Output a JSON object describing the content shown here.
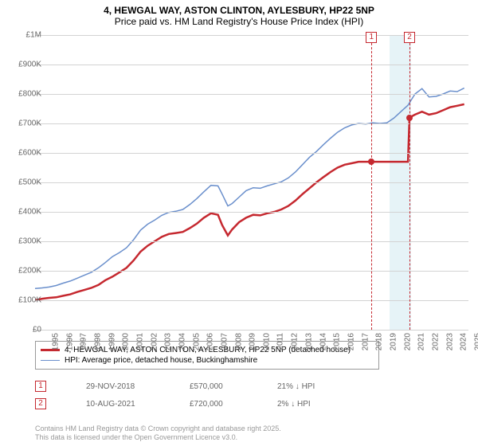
{
  "title": "4, HEWGAL WAY, ASTON CLINTON, AYLESBURY, HP22 5NP",
  "subtitle": "Price paid vs. HM Land Registry's House Price Index (HPI)",
  "chart": {
    "type": "line",
    "xlim": [
      1995,
      2025.8
    ],
    "ylim": [
      0,
      1000000
    ],
    "x_ticks": [
      1995,
      1996,
      1997,
      1998,
      1999,
      2000,
      2001,
      2002,
      2003,
      2004,
      2005,
      2006,
      2007,
      2008,
      2009,
      2010,
      2011,
      2012,
      2013,
      2014,
      2015,
      2016,
      2017,
      2018,
      2019,
      2020,
      2021,
      2022,
      2023,
      2024,
      2025
    ],
    "y_ticks": [
      0,
      100000,
      200000,
      300000,
      400000,
      500000,
      600000,
      700000,
      800000,
      900000,
      1000000
    ],
    "y_tick_labels": [
      "£0",
      "£100K",
      "£200K",
      "£300K",
      "£400K",
      "£500K",
      "£600K",
      "£700K",
      "£800K",
      "£900K",
      "£1M"
    ],
    "grid_color": "#d3d3d3",
    "background_color": "#ffffff",
    "highlight_band": {
      "x_start": 2020.2,
      "x_end": 2021.7,
      "color": "rgba(173,216,230,0.3)"
    },
    "series": [
      {
        "name": "property",
        "label": "4, HEWGAL WAY, ASTON CLINTON, AYLESBURY, HP22 5NP (detached house)",
        "color": "#c5282f",
        "width": 2.5,
        "data": [
          [
            1995,
            100000
          ],
          [
            1995.5,
            105000
          ],
          [
            1996,
            108000
          ],
          [
            1996.5,
            110000
          ],
          [
            1997,
            115000
          ],
          [
            1997.5,
            120000
          ],
          [
            1998,
            128000
          ],
          [
            1998.5,
            135000
          ],
          [
            1999,
            142000
          ],
          [
            1999.5,
            152000
          ],
          [
            2000,
            168000
          ],
          [
            2000.5,
            180000
          ],
          [
            2001,
            195000
          ],
          [
            2001.5,
            210000
          ],
          [
            2002,
            235000
          ],
          [
            2002.5,
            265000
          ],
          [
            2003,
            285000
          ],
          [
            2003.5,
            300000
          ],
          [
            2004,
            315000
          ],
          [
            2004.5,
            325000
          ],
          [
            2005,
            328000
          ],
          [
            2005.5,
            332000
          ],
          [
            2006,
            345000
          ],
          [
            2006.5,
            360000
          ],
          [
            2007,
            380000
          ],
          [
            2007.5,
            395000
          ],
          [
            2008,
            390000
          ],
          [
            2008.3,
            355000
          ],
          [
            2008.7,
            320000
          ],
          [
            2009,
            340000
          ],
          [
            2009.5,
            365000
          ],
          [
            2010,
            380000
          ],
          [
            2010.5,
            390000
          ],
          [
            2011,
            388000
          ],
          [
            2011.5,
            395000
          ],
          [
            2012,
            400000
          ],
          [
            2012.5,
            408000
          ],
          [
            2013,
            420000
          ],
          [
            2013.5,
            438000
          ],
          [
            2014,
            460000
          ],
          [
            2014.5,
            480000
          ],
          [
            2015,
            500000
          ],
          [
            2015.5,
            518000
          ],
          [
            2016,
            535000
          ],
          [
            2016.5,
            550000
          ],
          [
            2017,
            560000
          ],
          [
            2017.5,
            565000
          ],
          [
            2018,
            570000
          ],
          [
            2018.5,
            570000
          ],
          [
            2018.91,
            570000
          ],
          [
            2019,
            570000
          ],
          [
            2019.5,
            570000
          ],
          [
            2020,
            570000
          ],
          [
            2020.5,
            570000
          ],
          [
            2021,
            570000
          ],
          [
            2021.5,
            570000
          ],
          [
            2021.61,
            720000
          ],
          [
            2022,
            730000
          ],
          [
            2022.5,
            740000
          ],
          [
            2023,
            730000
          ],
          [
            2023.5,
            735000
          ],
          [
            2024,
            745000
          ],
          [
            2024.5,
            755000
          ],
          [
            2025,
            760000
          ],
          [
            2025.5,
            765000
          ]
        ]
      },
      {
        "name": "hpi",
        "label": "HPI: Average price, detached house, Buckinghamshire",
        "color": "#6a8fcc",
        "width": 1.5,
        "data": [
          [
            1995,
            140000
          ],
          [
            1995.5,
            142000
          ],
          [
            1996,
            145000
          ],
          [
            1996.5,
            150000
          ],
          [
            1997,
            158000
          ],
          [
            1997.5,
            165000
          ],
          [
            1998,
            175000
          ],
          [
            1998.5,
            185000
          ],
          [
            1999,
            195000
          ],
          [
            1999.5,
            210000
          ],
          [
            2000,
            228000
          ],
          [
            2000.5,
            248000
          ],
          [
            2001,
            262000
          ],
          [
            2001.5,
            278000
          ],
          [
            2002,
            305000
          ],
          [
            2002.5,
            338000
          ],
          [
            2003,
            358000
          ],
          [
            2003.5,
            372000
          ],
          [
            2004,
            388000
          ],
          [
            2004.5,
            398000
          ],
          [
            2005,
            402000
          ],
          [
            2005.5,
            408000
          ],
          [
            2006,
            425000
          ],
          [
            2006.5,
            445000
          ],
          [
            2007,
            468000
          ],
          [
            2007.5,
            490000
          ],
          [
            2008,
            488000
          ],
          [
            2008.3,
            460000
          ],
          [
            2008.7,
            420000
          ],
          [
            2009,
            428000
          ],
          [
            2009.5,
            450000
          ],
          [
            2010,
            472000
          ],
          [
            2010.5,
            482000
          ],
          [
            2011,
            480000
          ],
          [
            2011.5,
            488000
          ],
          [
            2012,
            495000
          ],
          [
            2012.5,
            502000
          ],
          [
            2013,
            515000
          ],
          [
            2013.5,
            535000
          ],
          [
            2014,
            560000
          ],
          [
            2014.5,
            585000
          ],
          [
            2015,
            605000
          ],
          [
            2015.5,
            628000
          ],
          [
            2016,
            650000
          ],
          [
            2016.5,
            670000
          ],
          [
            2017,
            685000
          ],
          [
            2017.5,
            695000
          ],
          [
            2018,
            700000
          ],
          [
            2018.5,
            698000
          ],
          [
            2019,
            702000
          ],
          [
            2019.5,
            700000
          ],
          [
            2020,
            702000
          ],
          [
            2020.5,
            718000
          ],
          [
            2021,
            740000
          ],
          [
            2021.5,
            762000
          ],
          [
            2022,
            800000
          ],
          [
            2022.5,
            818000
          ],
          [
            2023,
            790000
          ],
          [
            2023.5,
            792000
          ],
          [
            2024,
            800000
          ],
          [
            2024.5,
            810000
          ],
          [
            2025,
            808000
          ],
          [
            2025.5,
            820000
          ]
        ]
      }
    ],
    "markers": [
      {
        "num": "1",
        "x": 2018.91,
        "y": 570000
      },
      {
        "num": "2",
        "x": 2021.61,
        "y": 720000
      }
    ]
  },
  "legend": {
    "items": [
      {
        "color": "#c5282f",
        "width": 2.5,
        "label_key": "chart.series.0.label"
      },
      {
        "color": "#6a8fcc",
        "width": 1.5,
        "label_key": "chart.series.1.label"
      }
    ]
  },
  "transactions": [
    {
      "num": "1",
      "date": "29-NOV-2018",
      "price": "£570,000",
      "diff": "21% ↓ HPI"
    },
    {
      "num": "2",
      "date": "10-AUG-2021",
      "price": "£720,000",
      "diff": "2% ↓ HPI"
    }
  ],
  "footnote_line1": "Contains HM Land Registry data © Crown copyright and database right 2025.",
  "footnote_line2": "This data is licensed under the Open Government Licence v3.0."
}
